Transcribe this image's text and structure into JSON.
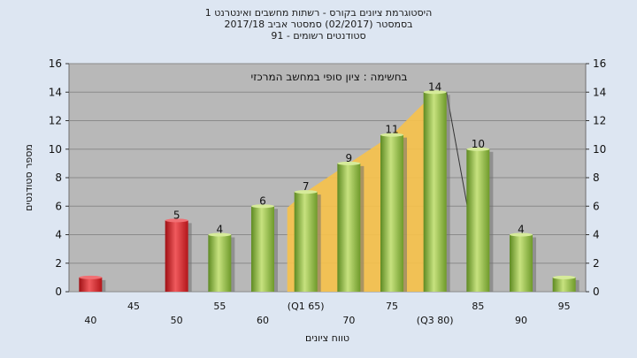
{
  "title_lines": [
    "היסטוגרמת ציונים בקורס - רשתות מחשבים ואינטרנט 1",
    "בסמסטר  (02/2017)  סמסטר אביב 2017/18",
    "סטודנטים רשומים - 91"
  ],
  "chart_data": {
    "type": "bar",
    "inner_label": "בחשימה : ציון סופי במחשב המרכזי",
    "xlabel": "טווח ציונים",
    "ylabel": "מספר סטודנטים",
    "ylim": [
      0,
      16
    ],
    "yticks": [
      0,
      2,
      4,
      6,
      8,
      10,
      12,
      14,
      16
    ],
    "grid": true,
    "categories": [
      "40",
      "45",
      "50",
      "55",
      "60",
      "65",
      "70",
      "75",
      "80",
      "85",
      "90",
      "95"
    ],
    "category_labels_lower": [
      "40",
      "50",
      "60",
      "70",
      "(Q3 80)",
      "90"
    ],
    "category_labels_upper": [
      "45",
      "55",
      "(Q1 65)",
      "75",
      "85",
      "95"
    ],
    "values": [
      1,
      0,
      5,
      4,
      6,
      7,
      9,
      11,
      14,
      10,
      4,
      1
    ],
    "data_labels": [
      "",
      "",
      "5",
      "4",
      "6",
      "7",
      "9",
      "11",
      "14",
      "10",
      "4",
      ""
    ],
    "bar_colors": [
      "red",
      "none",
      "red",
      "green",
      "green",
      "green",
      "green",
      "green",
      "green",
      "green",
      "green",
      "green"
    ],
    "interquartile_band": {
      "from": "65",
      "to": "80",
      "color": "#f7c24a"
    },
    "colors": {
      "plot_background": "#b8b8b8",
      "grid": "#8a8a8a",
      "green_bar": "#8fb748",
      "red_bar": "#d9252a",
      "background": "#dde6f2"
    }
  }
}
